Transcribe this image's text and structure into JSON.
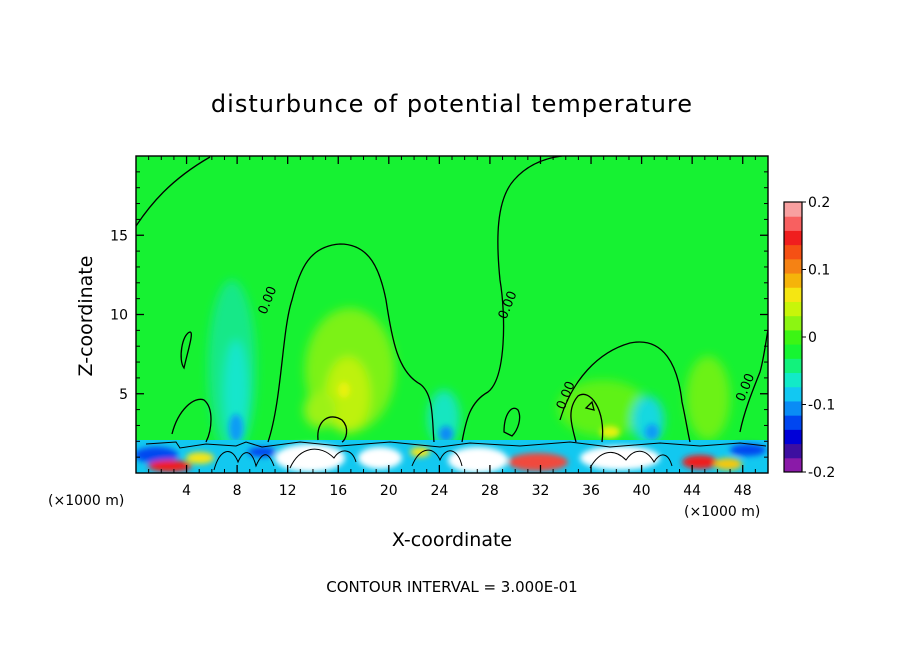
{
  "chart_data": {
    "type": "heatmap",
    "title": "disturbunce of potential temperature",
    "xlabel": "X-coordinate",
    "ylabel": "Z-coordinate",
    "x_unit_left": "(×1000 m)",
    "x_unit_right": "(×1000 m)",
    "xlim": [
      0,
      50
    ],
    "ylim": [
      0,
      20
    ],
    "x_ticks": [
      4,
      8,
      12,
      16,
      20,
      24,
      28,
      32,
      36,
      40,
      44,
      48
    ],
    "y_ticks": [
      5,
      10,
      15
    ],
    "colorbar": {
      "min": -0.2,
      "max": 0.2,
      "labels": [
        "0.2",
        "0.1",
        "0",
        "-0.1",
        "-0.2"
      ],
      "label_values": [
        0.2,
        0.1,
        0,
        -0.1,
        -0.2
      ],
      "colors": [
        "#8a1aa8",
        "#3d0fa0",
        "#0000d8",
        "#0046f0",
        "#0a8cf5",
        "#12c8f2",
        "#12eac8",
        "#12f27c",
        "#16f532",
        "#3cf514",
        "#8cf512",
        "#c8f50a",
        "#f5e612",
        "#f5b40a",
        "#f58214",
        "#f55014",
        "#f01e1e",
        "#f86060",
        "#f8a0a0"
      ]
    },
    "contour_labels": [
      {
        "text": "0.00",
        "x": 10.7,
        "y": 10.8
      },
      {
        "text": "0.00",
        "x": 29.7,
        "y": 10.5
      },
      {
        "text": "0.00",
        "x": 34.3,
        "y": 4.8
      },
      {
        "text": "0.00",
        "x": 48.5,
        "y": 5.3
      }
    ],
    "footer": "CONTOUR INTERVAL = 3.000E-01"
  }
}
